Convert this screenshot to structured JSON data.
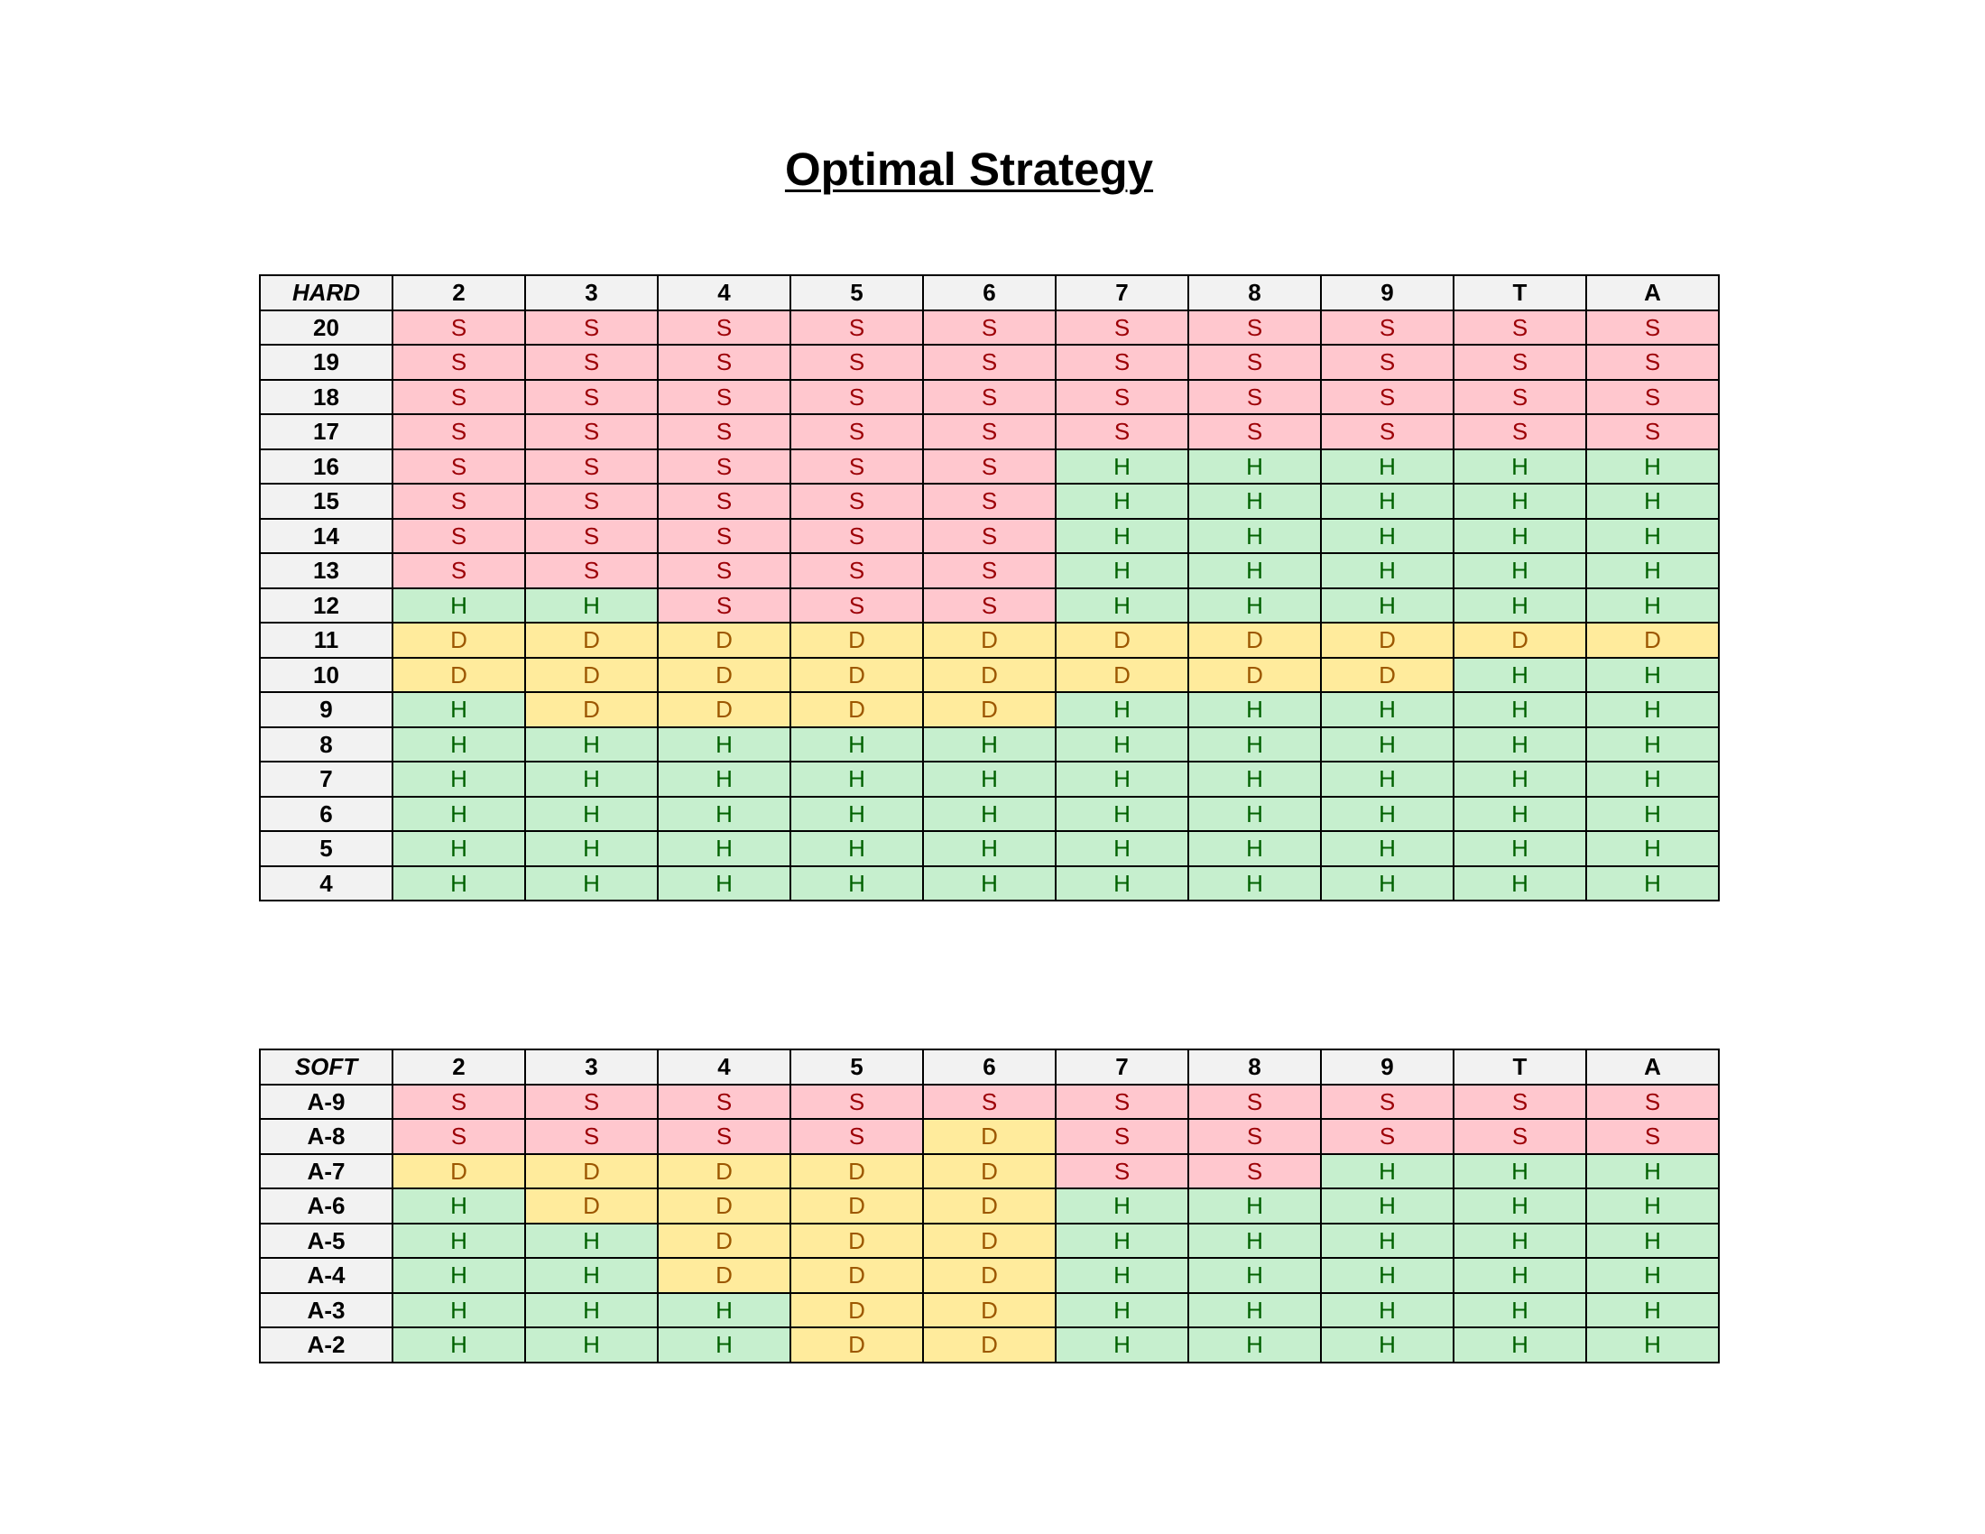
{
  "title": "Optimal Strategy",
  "colors": {
    "S": {
      "bg": "#ffc7ce",
      "fg": "#9c0006"
    },
    "H": {
      "bg": "#c6efce",
      "fg": "#006100"
    },
    "D": {
      "bg": "#ffeb9c",
      "fg": "#9c5700"
    },
    "header_bg": "#f2f2f2"
  },
  "tables": [
    {
      "id": "hard",
      "corner_label": "HARD",
      "dealer_cards": [
        "2",
        "3",
        "4",
        "5",
        "6",
        "7",
        "8",
        "9",
        "T",
        "A"
      ],
      "rows": [
        {
          "label": "20",
          "actions": [
            "S",
            "S",
            "S",
            "S",
            "S",
            "S",
            "S",
            "S",
            "S",
            "S"
          ]
        },
        {
          "label": "19",
          "actions": [
            "S",
            "S",
            "S",
            "S",
            "S",
            "S",
            "S",
            "S",
            "S",
            "S"
          ]
        },
        {
          "label": "18",
          "actions": [
            "S",
            "S",
            "S",
            "S",
            "S",
            "S",
            "S",
            "S",
            "S",
            "S"
          ]
        },
        {
          "label": "17",
          "actions": [
            "S",
            "S",
            "S",
            "S",
            "S",
            "S",
            "S",
            "S",
            "S",
            "S"
          ]
        },
        {
          "label": "16",
          "actions": [
            "S",
            "S",
            "S",
            "S",
            "S",
            "H",
            "H",
            "H",
            "H",
            "H"
          ]
        },
        {
          "label": "15",
          "actions": [
            "S",
            "S",
            "S",
            "S",
            "S",
            "H",
            "H",
            "H",
            "H",
            "H"
          ]
        },
        {
          "label": "14",
          "actions": [
            "S",
            "S",
            "S",
            "S",
            "S",
            "H",
            "H",
            "H",
            "H",
            "H"
          ]
        },
        {
          "label": "13",
          "actions": [
            "S",
            "S",
            "S",
            "S",
            "S",
            "H",
            "H",
            "H",
            "H",
            "H"
          ]
        },
        {
          "label": "12",
          "actions": [
            "H",
            "H",
            "S",
            "S",
            "S",
            "H",
            "H",
            "H",
            "H",
            "H"
          ]
        },
        {
          "label": "11",
          "actions": [
            "D",
            "D",
            "D",
            "D",
            "D",
            "D",
            "D",
            "D",
            "D",
            "D"
          ]
        },
        {
          "label": "10",
          "actions": [
            "D",
            "D",
            "D",
            "D",
            "D",
            "D",
            "D",
            "D",
            "H",
            "H"
          ]
        },
        {
          "label": "9",
          "actions": [
            "H",
            "D",
            "D",
            "D",
            "D",
            "H",
            "H",
            "H",
            "H",
            "H"
          ]
        },
        {
          "label": "8",
          "actions": [
            "H",
            "H",
            "H",
            "H",
            "H",
            "H",
            "H",
            "H",
            "H",
            "H"
          ]
        },
        {
          "label": "7",
          "actions": [
            "H",
            "H",
            "H",
            "H",
            "H",
            "H",
            "H",
            "H",
            "H",
            "H"
          ]
        },
        {
          "label": "6",
          "actions": [
            "H",
            "H",
            "H",
            "H",
            "H",
            "H",
            "H",
            "H",
            "H",
            "H"
          ]
        },
        {
          "label": "5",
          "actions": [
            "H",
            "H",
            "H",
            "H",
            "H",
            "H",
            "H",
            "H",
            "H",
            "H"
          ]
        },
        {
          "label": "4",
          "actions": [
            "H",
            "H",
            "H",
            "H",
            "H",
            "H",
            "H",
            "H",
            "H",
            "H"
          ]
        }
      ]
    },
    {
      "id": "soft",
      "corner_label": "SOFT",
      "dealer_cards": [
        "2",
        "3",
        "4",
        "5",
        "6",
        "7",
        "8",
        "9",
        "T",
        "A"
      ],
      "rows": [
        {
          "label": "A-9",
          "actions": [
            "S",
            "S",
            "S",
            "S",
            "S",
            "S",
            "S",
            "S",
            "S",
            "S"
          ]
        },
        {
          "label": "A-8",
          "actions": [
            "S",
            "S",
            "S",
            "S",
            "D",
            "S",
            "S",
            "S",
            "S",
            "S"
          ]
        },
        {
          "label": "A-7",
          "actions": [
            "D",
            "D",
            "D",
            "D",
            "D",
            "S",
            "S",
            "H",
            "H",
            "H"
          ]
        },
        {
          "label": "A-6",
          "actions": [
            "H",
            "D",
            "D",
            "D",
            "D",
            "H",
            "H",
            "H",
            "H",
            "H"
          ]
        },
        {
          "label": "A-5",
          "actions": [
            "H",
            "H",
            "D",
            "D",
            "D",
            "H",
            "H",
            "H",
            "H",
            "H"
          ]
        },
        {
          "label": "A-4",
          "actions": [
            "H",
            "H",
            "D",
            "D",
            "D",
            "H",
            "H",
            "H",
            "H",
            "H"
          ]
        },
        {
          "label": "A-3",
          "actions": [
            "H",
            "H",
            "H",
            "D",
            "D",
            "H",
            "H",
            "H",
            "H",
            "H"
          ]
        },
        {
          "label": "A-2",
          "actions": [
            "H",
            "H",
            "H",
            "D",
            "D",
            "H",
            "H",
            "H",
            "H",
            "H"
          ]
        }
      ]
    }
  ]
}
